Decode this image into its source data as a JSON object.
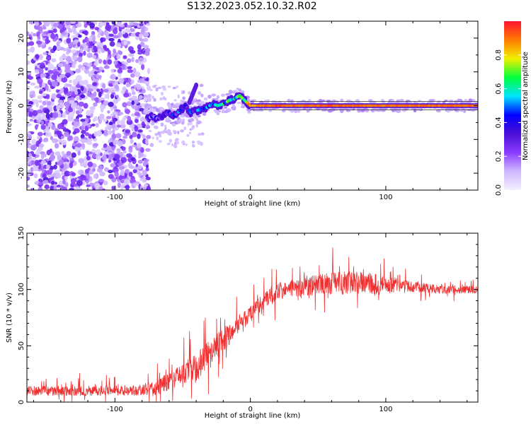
{
  "figure": {
    "title": "S132.2023.052.10.32.R02"
  },
  "chart_data": [
    {
      "type": "heatmap",
      "xlabel": "Height of straight line (km)",
      "ylabel": "Frequency (Hz)",
      "xlim": [
        -165,
        168
      ],
      "ylim": [
        -25,
        25
      ],
      "xticks": [
        -100,
        0,
        100
      ],
      "yticks": [
        -20,
        -10,
        0,
        10,
        20
      ],
      "colorbar": {
        "label": "Normalized spectral amplitude",
        "range": [
          0.0,
          1.0
        ],
        "ticks": [
          0.0,
          0.2,
          0.4,
          0.6,
          0.8
        ],
        "colormap": [
          "#f4f0ff",
          "#cfb7ff",
          "#8a3cff",
          "#4a0fd6",
          "#0000ff",
          "#00e5ff",
          "#00ff3c",
          "#f0f000",
          "#ff7a00",
          "#ff1430"
        ]
      },
      "noise_region_x": [
        -165,
        -75
      ],
      "trace": {
        "x": [
          -76,
          -72,
          -68,
          -64,
          -60,
          -56,
          -52,
          -48,
          -44,
          -40,
          -36,
          -32,
          -28,
          -24,
          -20,
          -16,
          -12,
          -8,
          -4,
          0,
          10,
          20,
          40,
          60,
          80,
          100,
          120,
          140,
          168
        ],
        "y": [
          -4,
          -3,
          -4,
          -3,
          -2,
          -3,
          -1.5,
          0,
          -2,
          -1.5,
          -1,
          -0.5,
          0.5,
          0,
          0.5,
          1.5,
          2,
          3,
          1.5,
          0,
          0,
          0,
          0,
          0,
          0,
          0,
          0,
          0,
          0
        ],
        "amplitude": [
          0.25,
          0.3,
          0.3,
          0.35,
          0.35,
          0.35,
          0.4,
          0.3,
          0.4,
          0.4,
          0.45,
          0.5,
          0.5,
          0.55,
          0.55,
          0.6,
          0.6,
          0.6,
          0.7,
          0.85,
          0.9,
          0.92,
          0.9,
          0.92,
          0.9,
          0.9,
          0.9,
          0.9,
          0.9
        ]
      },
      "spur": {
        "x": [
          -45,
          -40
        ],
        "y": [
          1,
          6
        ]
      }
    },
    {
      "type": "line",
      "xlabel": "Height of straight line (km)",
      "ylabel": "SNR (10 * v/v)",
      "xlim": [
        -165,
        168
      ],
      "ylim": [
        0,
        150
      ],
      "xticks": [
        -100,
        0,
        100
      ],
      "yticks": [
        0,
        50,
        100,
        150
      ],
      "series": [
        {
          "color": "#f03030",
          "x": [
            -165,
            -140,
            -120,
            -100,
            -80,
            -70,
            -60,
            -50,
            -45,
            -40,
            -35,
            -30,
            -25,
            -20,
            -15,
            -10,
            -5,
            0,
            5,
            10,
            15,
            20,
            25,
            30,
            40,
            50,
            60,
            70,
            80,
            90,
            100,
            110,
            120,
            130,
            140,
            150,
            168
          ],
          "y": [
            10,
            10,
            10,
            10,
            11,
            13,
            18,
            24,
            28,
            30,
            38,
            42,
            50,
            55,
            60,
            66,
            72,
            78,
            84,
            90,
            95,
            98,
            100,
            101,
            103,
            104,
            105,
            106,
            106,
            105,
            104,
            103,
            102,
            101,
            100,
            100,
            100
          ],
          "noise_amplitude": [
            8,
            8,
            8,
            8,
            9,
            12,
            16,
            20,
            22,
            24,
            24,
            22,
            20,
            18,
            16,
            15,
            14,
            13,
            13,
            13,
            13,
            14,
            14,
            14,
            16,
            17,
            18,
            19,
            18,
            17,
            14,
            11,
            9,
            8,
            7,
            6,
            6
          ]
        }
      ]
    }
  ]
}
